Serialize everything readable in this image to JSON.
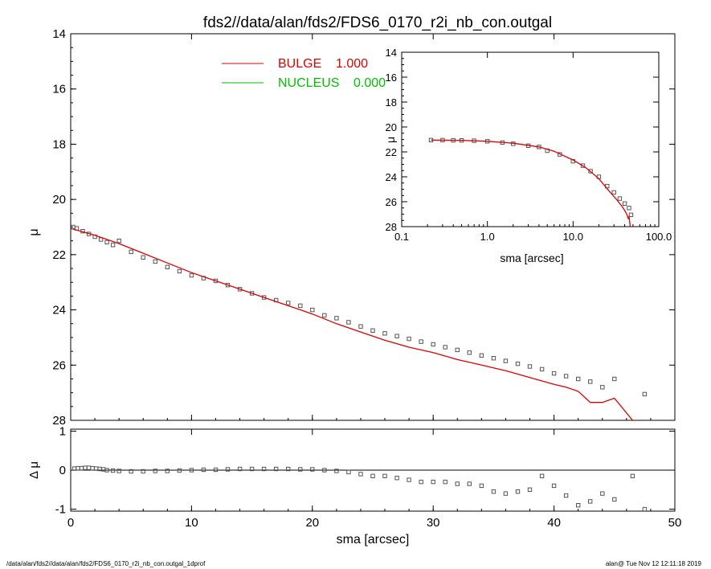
{
  "title": "fds2//data/alan/fds2/FDS6_0170_r2i_nb_con.outgal",
  "footer": {
    "left": "/data/alan/fds2//data/alan/fds2/FDS6_0170_r2i_nb_con.outgal_1dprof",
    "right": "alan@  Tue Nov 12 12:11:18 2019"
  },
  "colors": {
    "bulge": "#e00000",
    "nucleus": "#00c000",
    "data": "#000000"
  },
  "legend": [
    {
      "label": "BULGE",
      "value": "1.000",
      "color": "#e00000"
    },
    {
      "label": "NUCLEUS",
      "value": "0.000",
      "color": "#00c000"
    }
  ],
  "chart_data": [
    {
      "id": "main",
      "type": "scatter",
      "xlabel": "sma [arcsec]",
      "ylabel": "μ",
      "xlim": [
        0,
        50
      ],
      "ylim": [
        28,
        14
      ],
      "xticks": [
        "0",
        "10",
        "20",
        "30",
        "40",
        "50"
      ],
      "yticks": [
        "14",
        "16",
        "18",
        "20",
        "22",
        "24",
        "26",
        "28"
      ],
      "series": [
        {
          "kind": "points",
          "x": [
            0.2,
            0.5,
            1.0,
            1.5,
            2.0,
            2.5,
            3.0,
            3.5,
            4.0,
            5.0,
            6.0,
            7.0,
            8.0,
            9.0,
            10.0,
            11.0,
            12.0,
            13.0,
            14.0,
            15.0,
            16.0,
            17.0,
            18.0,
            19.0,
            20.0,
            21.0,
            22.0,
            23.0,
            24.0,
            25.0,
            26.0,
            27.0,
            28.0,
            29.0,
            30.0,
            31.0,
            32.0,
            33.0,
            34.0,
            35.0,
            36.0,
            37.0,
            38.0,
            39.0,
            40.0,
            41.0,
            42.0,
            43.0,
            44.0,
            45.0,
            47.5
          ],
          "y": [
            21.0,
            21.05,
            21.15,
            21.25,
            21.35,
            21.45,
            21.55,
            21.65,
            21.5,
            21.9,
            22.1,
            22.25,
            22.45,
            22.6,
            22.75,
            22.85,
            22.95,
            23.1,
            23.25,
            23.4,
            23.55,
            23.65,
            23.75,
            23.85,
            24.0,
            24.2,
            24.3,
            24.45,
            24.6,
            24.75,
            24.85,
            24.95,
            25.05,
            25.15,
            25.25,
            25.35,
            25.45,
            25.55,
            25.65,
            25.75,
            25.85,
            25.95,
            26.05,
            26.15,
            26.3,
            26.4,
            26.5,
            26.6,
            26.8,
            26.5,
            27.05
          ]
        },
        {
          "kind": "line",
          "color": "#e00000",
          "x": [
            0,
            2,
            4,
            6,
            8,
            10,
            12,
            14,
            16,
            18,
            20,
            22,
            24,
            26,
            28,
            30,
            32,
            34,
            36,
            38,
            40,
            41,
            42,
            43,
            44,
            45,
            46.5
          ],
          "y": [
            21.05,
            21.3,
            21.6,
            21.95,
            22.3,
            22.65,
            22.95,
            23.25,
            23.55,
            23.85,
            24.15,
            24.5,
            24.8,
            25.1,
            25.35,
            25.55,
            25.8,
            26.0,
            26.2,
            26.45,
            26.7,
            26.8,
            26.95,
            27.35,
            27.35,
            27.2,
            28.0
          ]
        }
      ]
    },
    {
      "id": "inset",
      "type": "scatter",
      "xscale": "log",
      "xlabel": "sma [arcsec]",
      "ylabel": "μ",
      "xlim": [
        0.1,
        100.0
      ],
      "ylim": [
        28,
        14
      ],
      "xticks": [
        "0.1",
        "1.0",
        "10.0",
        "100.0"
      ],
      "yticks": [
        "14",
        "16",
        "18",
        "20",
        "22",
        "24",
        "26",
        "28"
      ],
      "series": [
        {
          "kind": "points",
          "x": [
            0.22,
            0.3,
            0.4,
            0.5,
            0.7,
            1.0,
            1.5,
            2.0,
            3.0,
            4.0,
            5.0,
            7.0,
            10.0,
            13.0,
            16.0,
            20.0,
            25.0,
            30.0,
            35.0,
            40.0,
            45.0,
            47.5
          ],
          "y": [
            21.05,
            21.06,
            21.07,
            21.08,
            21.1,
            21.15,
            21.25,
            21.35,
            21.5,
            21.6,
            21.9,
            22.2,
            22.75,
            23.1,
            23.55,
            24.0,
            24.75,
            25.25,
            25.75,
            26.15,
            26.5,
            27.05
          ]
        },
        {
          "kind": "line",
          "color": "#e00000",
          "x": [
            0.22,
            0.5,
            1.0,
            2.0,
            4.0,
            6.0,
            10.0,
            14.0,
            20.0,
            26.0,
            32.0,
            38.0,
            42.0,
            44.0,
            45.0,
            46.5
          ],
          "y": [
            21.05,
            21.08,
            21.15,
            21.3,
            21.6,
            21.95,
            22.65,
            23.25,
            24.15,
            25.1,
            25.8,
            26.45,
            26.95,
            27.35,
            27.2,
            28.0
          ]
        }
      ]
    },
    {
      "id": "residual",
      "type": "scatter",
      "xlabel": "sma [arcsec]",
      "ylabel": "Δ μ",
      "xlim": [
        0,
        50
      ],
      "ylim": [
        -1.05,
        1.05
      ],
      "yticks": [
        "1",
        "0",
        "-1"
      ],
      "series": [
        {
          "kind": "points",
          "x": [
            0.3,
            0.6,
            0.9,
            1.2,
            1.5,
            1.8,
            2.1,
            2.4,
            2.7,
            3.0,
            3.5,
            4.0,
            5.0,
            6.0,
            7.0,
            8.0,
            9.0,
            10.0,
            11.0,
            12.0,
            13.0,
            14.0,
            15.0,
            16.0,
            17.0,
            18.0,
            19.0,
            20.0,
            21.0,
            22.0,
            23.0,
            24.0,
            25.0,
            26.0,
            27.0,
            28.0,
            29.0,
            30.0,
            31.0,
            32.0,
            33.0,
            34.0,
            35.0,
            36.0,
            37.0,
            38.0,
            39.0,
            40.0,
            41.0,
            42.0,
            43.0,
            44.0,
            45.0,
            46.5,
            47.5
          ],
          "y": [
            0.04,
            0.05,
            0.05,
            0.06,
            0.06,
            0.05,
            0.04,
            0.03,
            0.02,
            0.0,
            -0.01,
            -0.02,
            -0.03,
            -0.03,
            -0.02,
            -0.02,
            -0.01,
            0.0,
            0.01,
            0.01,
            0.02,
            0.03,
            0.03,
            0.03,
            0.03,
            0.03,
            0.02,
            0.02,
            0.0,
            -0.02,
            -0.05,
            -0.1,
            -0.15,
            -0.15,
            -0.2,
            -0.25,
            -0.3,
            -0.3,
            -0.3,
            -0.35,
            -0.35,
            -0.4,
            -0.55,
            -0.6,
            -0.55,
            -0.5,
            -0.15,
            -0.4,
            -0.65,
            -0.9,
            -0.8,
            -0.6,
            -0.75,
            -0.15,
            -1.0
          ]
        }
      ]
    }
  ]
}
